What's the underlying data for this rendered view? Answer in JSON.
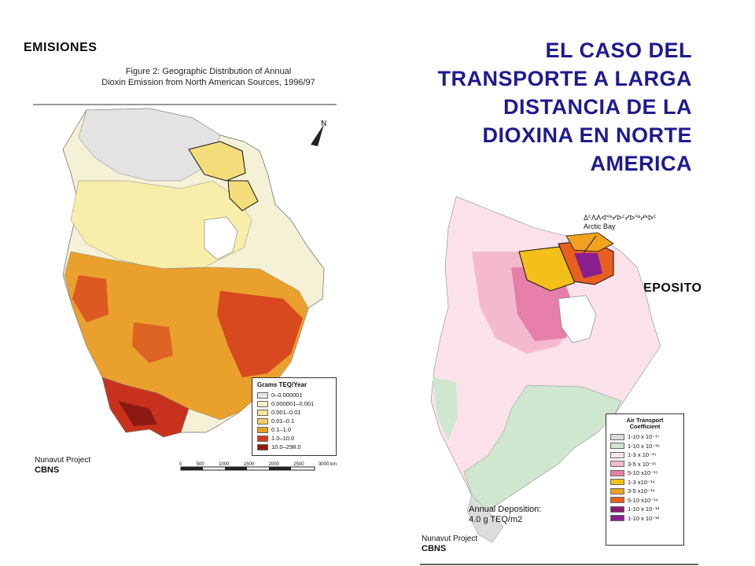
{
  "slide": {
    "title_lines": [
      "EL CASO DEL",
      "TRANSPORTE A LARGA",
      "DISTANCIA DE LA",
      "DIOXINA EN NORTE",
      "AMERICA"
    ],
    "label_left": "EMISIONES",
    "label_right": "DEPOSITO"
  },
  "left_map": {
    "caption_line1": "Figure 2:  Geographic Distribution of Annual",
    "caption_line2": "Dioxin Emission from North American Sources, 1996/97",
    "credit_line1": "Nunavut Project",
    "credit_line2": "CBNS",
    "legend_title": "Grams TEQ/Year",
    "legend": [
      {
        "label": "0–0.000001",
        "color": "#e6e6e6"
      },
      {
        "label": "0.000001–0.001",
        "color": "#fbf6c8"
      },
      {
        "label": "0.001–0.01",
        "color": "#f6e79a"
      },
      {
        "label": "0.01–0.1",
        "color": "#f2cf6a"
      },
      {
        "label": "0.1–1.0",
        "color": "#e9a02c"
      },
      {
        "label": "1.0–10.0",
        "color": "#d63a1e"
      },
      {
        "label": "10.0–298.0",
        "color": "#8c1a12"
      }
    ],
    "scale_ticks": [
      "0",
      "500",
      "1000",
      "1500",
      "2000",
      "2500",
      "3000 km"
    ]
  },
  "right_map": {
    "arctic_line1": "Δᑦᐱᐱᐊᖅᓯᐅᑦᓯᐅᖅᓱᒃᐅᑦ",
    "arctic_line2": "Arctic Bay",
    "annual_line1": "Annual Deposition:",
    "annual_line2": "4.0 g TEQ/m2",
    "credit_line1": "Nunavut Project",
    "credit_line2": "CBNS",
    "legend_title_line1": "Air Transport",
    "legend_title_line2": "Coefficient",
    "legend": [
      {
        "label": "1-10 x 10⁻¹⁷",
        "color": "#dcdcdc"
      },
      {
        "label": "1-10 x 10⁻¹⁶",
        "color": "#cfe6cf"
      },
      {
        "label": "1-3 x 10⁻¹⁵",
        "color": "#fbe2ea"
      },
      {
        "label": "3-5 x 10⁻¹⁵",
        "color": "#f4b9cf"
      },
      {
        "label": "5-10 x10⁻¹⁵",
        "color": "#e77faa"
      },
      {
        "label": "1-3 x10⁻¹⁴",
        "color": "#f2c018"
      },
      {
        "label": "3-5 x10⁻¹⁴",
        "color": "#f0a220"
      },
      {
        "label": "5-10 x10⁻¹⁴",
        "color": "#e85f22"
      },
      {
        "label": "1-10 x 10⁻¹³",
        "color": "#8c1a6a"
      },
      {
        "label": "1-10 x 10⁻¹²",
        "color": "#8b1e8e"
      }
    ]
  }
}
